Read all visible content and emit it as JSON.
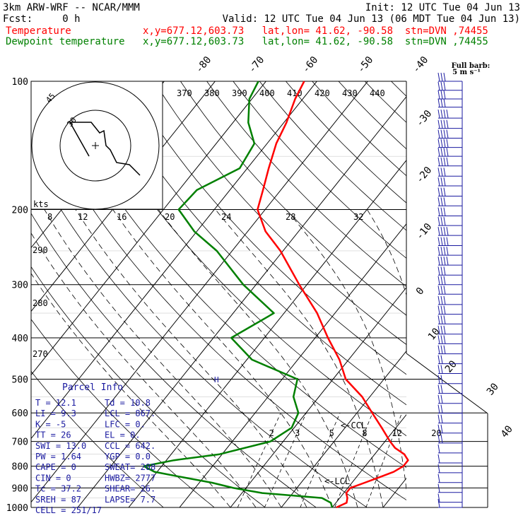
{
  "header": {
    "line1_left": "3km ARW-WRF -- NCAR/MMM",
    "line1_right": "Init: 12 UTC Tue 04 Jun 13",
    "line2_left": "Fcst:     0 h",
    "line2_right": "Valid: 12 UTC Tue 04 Jun 13 (06 MDT Tue 04 Jun 13)",
    "line3_left": "Temperature",
    "line3_mid": "x,y=677.12,603.73   lat,lon= 41.62, -90.58  stn=DVN ,74455",
    "line4_left": "Dewpoint temperature",
    "line4_mid": "x,y=677.12,603.73   lat,lon= 41.62, -90.58  stn=DVN ,74455",
    "barb_title_1": "Full barb:",
    "barb_title_2": "5 m s⁻¹"
  },
  "colors": {
    "temperature": "#ff0000",
    "dewpoint": "#008000",
    "text_blue": "#1a1aa0",
    "grid": "#000000"
  },
  "axes": {
    "pressure_ticks": [
      "100",
      "200",
      "300",
      "400",
      "500",
      "600",
      "700",
      "800",
      "900",
      "1000"
    ],
    "skew_temp_labels": [
      "-80",
      "-70",
      "-60",
      "-50",
      "-40",
      "-30",
      "-20",
      "-10",
      "0",
      "10",
      "20",
      "30",
      "40"
    ],
    "theta_labels": [
      "370",
      "380",
      "390",
      "400",
      "410",
      "420",
      "430",
      "440"
    ],
    "theta_left_labels": [
      "290",
      "280",
      "270"
    ],
    "mixing_ratio_labels": [
      "2",
      "3",
      "5",
      "8",
      "12",
      "20"
    ],
    "hodo_kts_title": "kts",
    "hodo_kts_labels": [
      "8",
      "12",
      "16",
      "20",
      "24",
      "28",
      "32"
    ],
    "hodo_ring_labels": [
      "45",
      "30"
    ]
  },
  "markers": {
    "ccl": "<-CCL",
    "lcl": "<-LCL",
    "h": "H"
  },
  "parcel_info": {
    "title": "Parcel Info",
    "rows": [
      [
        "T  =   12.1",
        "Td =  10.8"
      ],
      [
        "LI =    9.3",
        "LCL =  867."
      ],
      [
        "K  =     -5",
        "LFC =    0."
      ],
      [
        "TT =     26",
        "EL  =    0."
      ],
      [
        "SWI =  13.0",
        "CCL =  642."
      ],
      [
        "PW =   1.64",
        "YGP =   0.0"
      ],
      [
        "CAPE =     0",
        "SWEAT= 208"
      ],
      [
        "CIN  =     0",
        "HWBZ= 2777"
      ],
      [
        "Tc =   37.2",
        "SHEAR=  26."
      ],
      [
        "SREH =    87",
        "LAPSE=  7.7"
      ],
      [
        "CELL = 251/17",
        ""
      ]
    ]
  },
  "chart_data": {
    "type": "skew-t log-p",
    "y_axis": "pressure (hPa), log scale, 100 at top to 1000 at bottom",
    "series": [
      {
        "name": "Temperature",
        "unit": "degC",
        "points": [
          {
            "p": 1000,
            "t": 10.8
          },
          {
            "p": 975,
            "t": 12.1
          },
          {
            "p": 950,
            "t": 11.5
          },
          {
            "p": 925,
            "t": 10.5
          },
          {
            "p": 900,
            "t": 10.5
          },
          {
            "p": 875,
            "t": 12.5
          },
          {
            "p": 850,
            "t": 14.5
          },
          {
            "p": 825,
            "t": 16.5
          },
          {
            "p": 800,
            "t": 17.5
          },
          {
            "p": 775,
            "t": 17.5
          },
          {
            "p": 750,
            "t": 15.8
          },
          {
            "p": 725,
            "t": 13.0
          },
          {
            "p": 700,
            "t": 11.0
          },
          {
            "p": 650,
            "t": 7.2
          },
          {
            "p": 600,
            "t": 3.0
          },
          {
            "p": 550,
            "t": -1.5
          },
          {
            "p": 500,
            "t": -7.5
          },
          {
            "p": 450,
            "t": -11.8
          },
          {
            "p": 400,
            "t": -17.5
          },
          {
            "p": 350,
            "t": -23.5
          },
          {
            "p": 300,
            "t": -31.5
          },
          {
            "p": 250,
            "t": -40.5
          },
          {
            "p": 225,
            "t": -46.5
          },
          {
            "p": 200,
            "t": -51.5
          },
          {
            "p": 180,
            "t": -53.5
          },
          {
            "p": 160,
            "t": -55.8
          },
          {
            "p": 140,
            "t": -58.2
          },
          {
            "p": 125,
            "t": -59.5
          },
          {
            "p": 110,
            "t": -61.5
          },
          {
            "p": 100,
            "t": -62.5
          }
        ]
      },
      {
        "name": "Dewpoint temperature",
        "unit": "degC",
        "points": [
          {
            "p": 1000,
            "t": 10.0
          },
          {
            "p": 975,
            "t": 9.0
          },
          {
            "p": 950,
            "t": 6.5
          },
          {
            "p": 925,
            "t": -6.0
          },
          {
            "p": 900,
            "t": -12.5
          },
          {
            "p": 875,
            "t": -17.5
          },
          {
            "p": 850,
            "t": -24.0
          },
          {
            "p": 825,
            "t": -30.5
          },
          {
            "p": 800,
            "t": -33.5
          },
          {
            "p": 775,
            "t": -28.5
          },
          {
            "p": 750,
            "t": -20.5
          },
          {
            "p": 700,
            "t": -12.5
          },
          {
            "p": 650,
            "t": -10.5
          },
          {
            "p": 600,
            "t": -11.5
          },
          {
            "p": 550,
            "t": -15.0
          },
          {
            "p": 500,
            "t": -17.0
          },
          {
            "p": 450,
            "t": -29.0
          },
          {
            "p": 400,
            "t": -36.5
          },
          {
            "p": 350,
            "t": -32.0
          },
          {
            "p": 300,
            "t": -42.5
          },
          {
            "p": 250,
            "t": -53.0
          },
          {
            "p": 225,
            "t": -60.5
          },
          {
            "p": 200,
            "t": -67.0
          },
          {
            "p": 180,
            "t": -66.5
          },
          {
            "p": 160,
            "t": -61.5
          },
          {
            "p": 140,
            "t": -62.5
          },
          {
            "p": 125,
            "t": -67.0
          },
          {
            "p": 110,
            "t": -70.5
          },
          {
            "p": 100,
            "t": -71.5
          }
        ]
      }
    ],
    "wind_barbs": [
      {
        "p": 100,
        "ms": 15
      },
      {
        "p": 105,
        "ms": 15
      },
      {
        "p": 110,
        "ms": 15
      },
      {
        "p": 115,
        "ms": 15
      },
      {
        "p": 122,
        "ms": 20
      },
      {
        "p": 129,
        "ms": 20
      },
      {
        "p": 136,
        "ms": 20
      },
      {
        "p": 143,
        "ms": 20
      },
      {
        "p": 150,
        "ms": 20
      },
      {
        "p": 158,
        "ms": 20
      },
      {
        "p": 167,
        "ms": 15
      },
      {
        "p": 176,
        "ms": 15
      },
      {
        "p": 186,
        "ms": 15
      },
      {
        "p": 196,
        "ms": 15
      },
      {
        "p": 207,
        "ms": 15
      },
      {
        "p": 218,
        "ms": 15
      },
      {
        "p": 230,
        "ms": 20
      },
      {
        "p": 243,
        "ms": 20
      },
      {
        "p": 256,
        "ms": 20
      },
      {
        "p": 270,
        "ms": 20
      },
      {
        "p": 285,
        "ms": 15
      },
      {
        "p": 300,
        "ms": 15
      },
      {
        "p": 316,
        "ms": 15
      },
      {
        "p": 334,
        "ms": 15
      },
      {
        "p": 352,
        "ms": 15
      },
      {
        "p": 371,
        "ms": 15
      },
      {
        "p": 392,
        "ms": 15
      },
      {
        "p": 413,
        "ms": 15
      },
      {
        "p": 436,
        "ms": 15
      },
      {
        "p": 460,
        "ms": 10
      },
      {
        "p": 485,
        "ms": 10
      },
      {
        "p": 512,
        "ms": 10
      },
      {
        "p": 540,
        "ms": 10
      },
      {
        "p": 570,
        "ms": 10
      },
      {
        "p": 601,
        "ms": 10
      },
      {
        "p": 634,
        "ms": 10
      },
      {
        "p": 669,
        "ms": 10
      },
      {
        "p": 706,
        "ms": 10
      },
      {
        "p": 745,
        "ms": 5
      },
      {
        "p": 786,
        "ms": 5
      },
      {
        "p": 829,
        "ms": 5
      },
      {
        "p": 874,
        "ms": 5
      },
      {
        "p": 922,
        "ms": 5
      },
      {
        "p": 972,
        "ms": 5
      },
      {
        "p": 1000,
        "ms": 5
      }
    ],
    "hodograph": {
      "units": "kts",
      "rings_kts": [
        30,
        45
      ],
      "points": [
        [
          -3,
          -5
        ],
        [
          -12,
          11
        ],
        [
          -2,
          11
        ],
        [
          2,
          6
        ],
        [
          4,
          7
        ],
        [
          5,
          0
        ],
        [
          7,
          -2
        ],
        [
          10,
          -8
        ],
        [
          16,
          -9
        ],
        [
          21,
          -14
        ]
      ]
    }
  }
}
